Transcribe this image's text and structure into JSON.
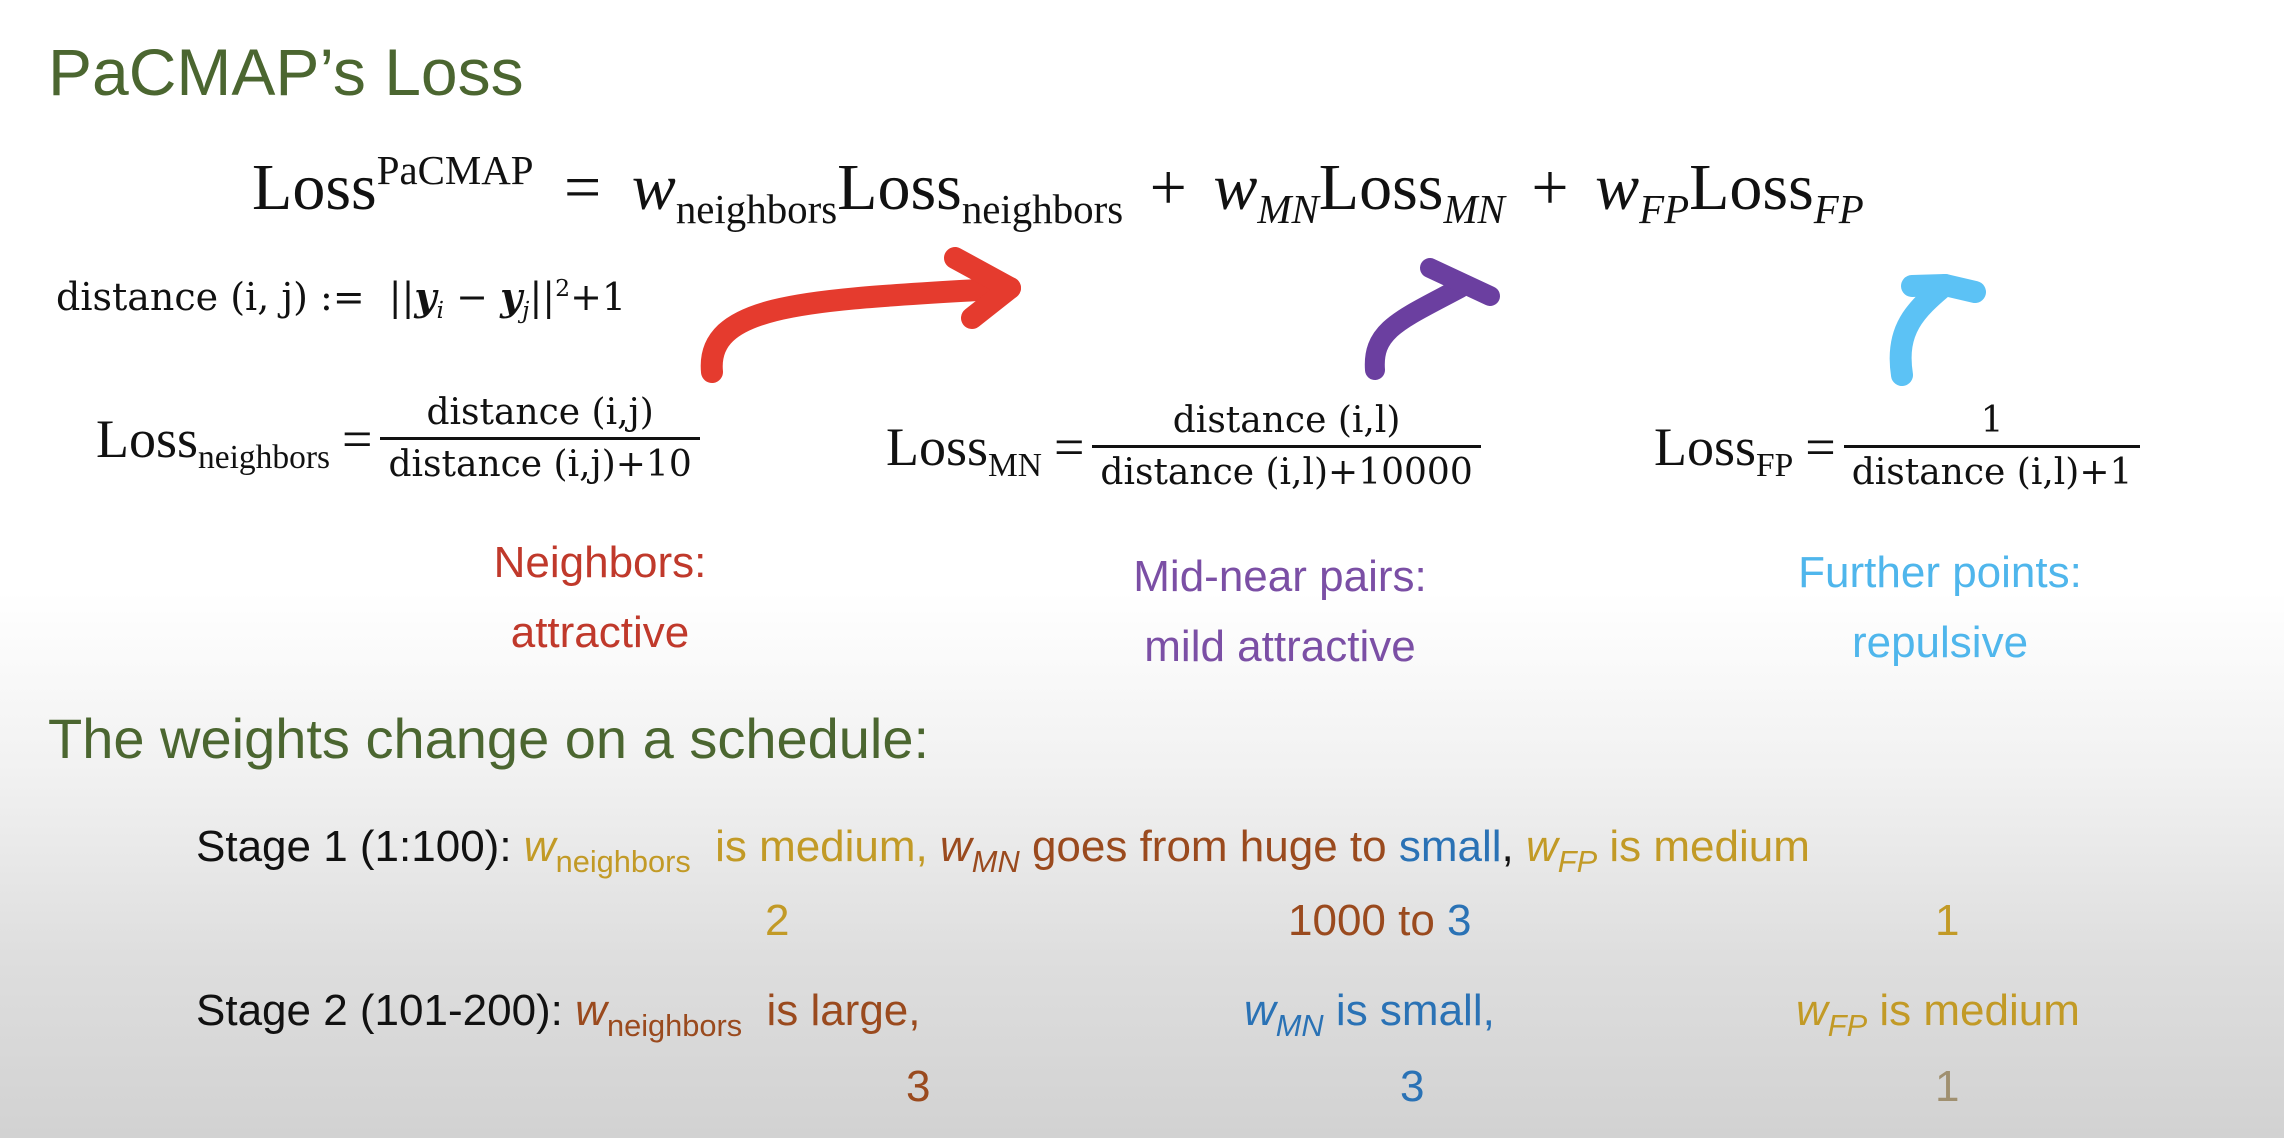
{
  "slide": {
    "title": "PaCMAP’s Loss",
    "main_equation": {
      "lhs": "Loss",
      "lhs_sup": "PaCMAP",
      "eq": "=",
      "w1": "w",
      "w1_sub": "neighbors",
      "l1": "Loss",
      "l1_sub": "neighbors",
      "plus1": "+",
      "w2": "w",
      "w2_sub": "MN",
      "l2": "Loss",
      "l2_sub": "MN",
      "plus2": "+",
      "w3": "w",
      "w3_sub": "FP",
      "l3": "Loss",
      "l3_sub": "FP"
    },
    "distance_def": {
      "lhs": "distance (i, j) :=",
      "norm_open": "||",
      "y1": "y",
      "y1_sub": "i",
      "minus": "−",
      "y2": "y",
      "y2_sub": "j",
      "norm_close": "||",
      "power": "2",
      "tail": "+1"
    },
    "loss_neighbors": {
      "lhs": "Loss",
      "lhs_sub": "neighbors",
      "eq": "=",
      "numerator": "distance (i,j)",
      "denominator": "distance (i,j)+10"
    },
    "loss_mn": {
      "lhs": "Loss",
      "lhs_sub": "MN",
      "eq": "=",
      "numerator": "distance (i,l)",
      "denominator": "distance (i,l)+10000"
    },
    "loss_fp": {
      "lhs": "Loss",
      "lhs_sub": "FP",
      "eq": "=",
      "numerator": "1",
      "denominator": "distance (i,l)+1"
    },
    "captions": {
      "neighbors_line1": "Neighbors:",
      "neighbors_line2": "attractive",
      "mn_line1": "Mid-near pairs:",
      "mn_line2": "mild attractive",
      "fp_line1": "Further points:",
      "fp_line2": "repulsive"
    },
    "schedule_heading": "The weights change on a schedule:",
    "stage1": {
      "label": "Stage 1 (1:100):",
      "w_neighbors": "w",
      "w_neighbors_sub": "neighbors",
      "neighbors_text": "is medium,",
      "w_mn": "w",
      "w_mn_sub": "MN",
      "mn_text": "goes from huge to",
      "mn_small": "small",
      "comma": ",",
      "w_fp": "w",
      "w_fp_sub": "FP",
      "fp_text": "is medium",
      "neighbors_value": "2",
      "mn_value_a": "1000 to",
      "mn_value_b": "3",
      "fp_value": "1"
    },
    "stage2": {
      "label": "Stage 2 (101-200):",
      "w_neighbors": "w",
      "w_neighbors_sub": "neighbors",
      "neighbors_text": "is large,",
      "w_mn": "w",
      "w_mn_sub": "MN",
      "mn_text": "is small,",
      "w_fp": "w",
      "w_fp_sub": "FP",
      "fp_text": "is medium",
      "neighbors_value": "3",
      "mn_value": "3",
      "fp_value": "1"
    },
    "colors": {
      "title_green": "#4b6630",
      "red": "#c0392b",
      "purple": "#7b4fa5",
      "sky_blue": "#4fb6ec",
      "gold": "#c29a26",
      "brown": "#9a4a1e",
      "blue": "#2a72b5"
    }
  }
}
